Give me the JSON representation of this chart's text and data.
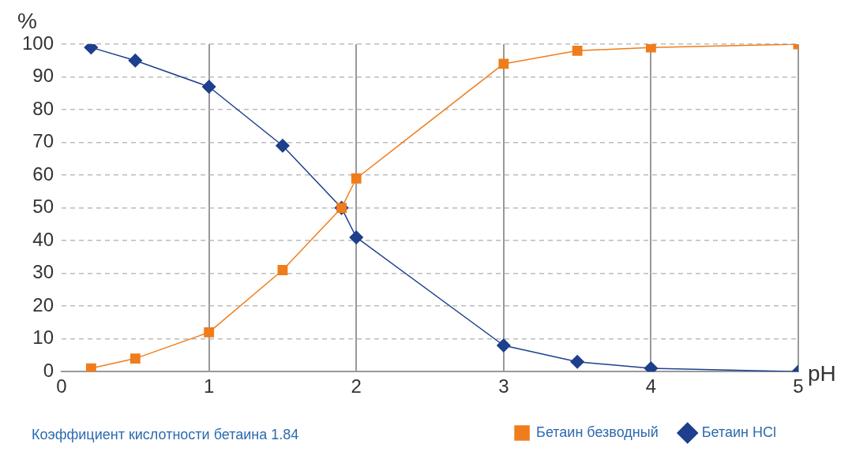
{
  "chart_data": {
    "type": "line",
    "xlabel": "pH",
    "ylabel": "%",
    "annotations": [
      "Коэффициент кислотности бетаина 1.84"
    ],
    "x": [
      0.2,
      0.5,
      1,
      1.5,
      1.9,
      2,
      3,
      3.5,
      4,
      5
    ],
    "series": [
      {
        "name": "Бетаин HCl",
        "color": "#1d3f8c",
        "marker": "diamond",
        "values": [
          99,
          95,
          87,
          69,
          50,
          41,
          8,
          3,
          1,
          0
        ]
      },
      {
        "name": "Бетаин безводный",
        "color": "#f07d1b",
        "marker": "square",
        "values": [
          1,
          4,
          12,
          31,
          50,
          59,
          94,
          98,
          99,
          100
        ]
      }
    ],
    "xlim": [
      0,
      5
    ],
    "xticks": [
      0,
      1,
      2,
      3,
      4,
      5
    ],
    "ylim": [
      0,
      100
    ],
    "yticks": [
      0,
      10,
      20,
      30,
      40,
      50,
      60,
      70,
      80,
      90,
      100
    ],
    "grid": true,
    "legend": "bottom right",
    "line_style": "solid"
  }
}
